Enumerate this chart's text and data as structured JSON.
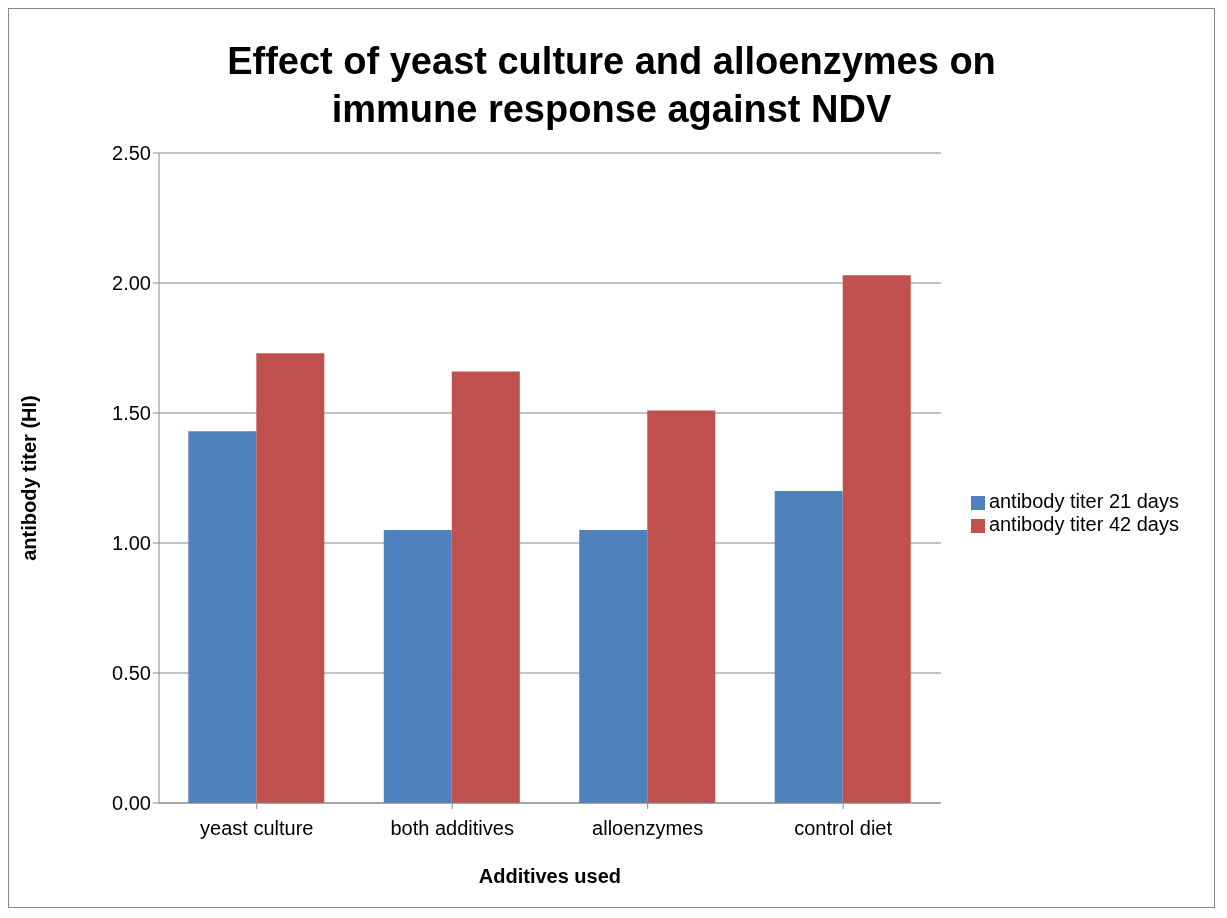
{
  "chart_data": {
    "type": "bar",
    "title": "Effect of yeast culture and alloenzymes on immune response against NDV",
    "xlabel": "Additives used",
    "ylabel": "antibody titer (HI)",
    "categories": [
      "yeast culture",
      "both additives",
      "alloenzymes",
      "control diet"
    ],
    "series": [
      {
        "name": "antibody titer 21 days",
        "color": "#4f81bd",
        "values": [
          1.43,
          1.05,
          1.05,
          1.2
        ]
      },
      {
        "name": "antibody titer 42 days",
        "color": "#c0504d",
        "values": [
          1.73,
          1.66,
          1.51,
          2.03
        ]
      }
    ],
    "ylim": [
      0,
      2.5
    ],
    "yticks": [
      {
        "value": 0,
        "label": "0.00"
      },
      {
        "value": 0.5,
        "label": "0.50"
      },
      {
        "value": 1,
        "label": "1.00"
      },
      {
        "value": 1.5,
        "label": "1.50"
      },
      {
        "value": 2,
        "label": "2.00"
      },
      {
        "value": 2.5,
        "label": "2.50"
      }
    ],
    "grid": "y",
    "legend": "right"
  }
}
